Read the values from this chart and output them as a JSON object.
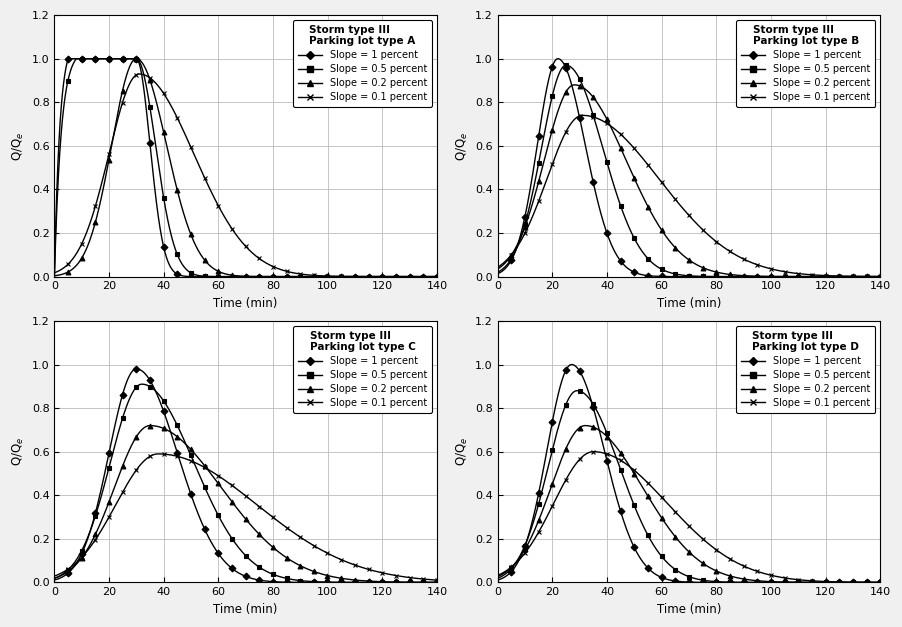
{
  "subplot_titles": [
    [
      "Storm type III",
      "Parking lot type A"
    ],
    [
      "Storm type III",
      "Parking lot type B"
    ],
    [
      "Storm type III",
      "Parking lot type C"
    ],
    [
      "Storm type III",
      "Parking lot type D"
    ]
  ],
  "slope_labels": [
    "Slope = 1 percent",
    "Slope = 0.5 percent",
    "Slope = 0.2 percent",
    "Slope = 0.1 percent"
  ],
  "markers": [
    "D",
    "s",
    "^",
    "x"
  ],
  "xlabel": "Time (min)",
  "ylabel": "Q/Q$_e$",
  "xlim": [
    0,
    140
  ],
  "ylim": [
    0,
    1.2
  ],
  "xticks": [
    0,
    20,
    40,
    60,
    80,
    100,
    120,
    140
  ],
  "yticks": [
    0,
    0.2,
    0.4,
    0.6,
    0.8,
    1.0,
    1.2
  ],
  "curves_A": {
    "peaks": [
      1.0,
      1.0,
      1.0,
      0.93
    ],
    "flat_starts": [
      5,
      8,
      null,
      null
    ],
    "flat_ends": [
      30,
      30,
      null,
      null
    ],
    "peak_times": [
      null,
      null,
      30,
      31
    ],
    "rise_s": [
      2.0,
      2.5,
      9,
      11
    ],
    "fall_s": [
      5.0,
      7.0,
      11,
      20
    ]
  },
  "curves_B": {
    "peaks": [
      1.0,
      0.97,
      0.88,
      0.74
    ],
    "peak_times": [
      22,
      25,
      28,
      31
    ],
    "rise_s": [
      7.5,
      9.0,
      11.0,
      13.0
    ],
    "fall_s": [
      10.0,
      13.5,
      19.0,
      28.0
    ]
  },
  "curves_C": {
    "peaks": [
      0.98,
      0.91,
      0.72,
      0.59
    ],
    "peak_times": [
      30,
      32,
      35,
      38
    ],
    "rise_s": [
      10.0,
      11.5,
      13.0,
      15.5
    ],
    "fall_s": [
      15.0,
      19.0,
      26.0,
      36.0
    ]
  },
  "curves_D": {
    "peaks": [
      1.0,
      0.88,
      0.72,
      0.6
    ],
    "peak_times": [
      27,
      29,
      32,
      35
    ],
    "rise_s": [
      9.0,
      10.5,
      12.5,
      14.5
    ],
    "fall_s": [
      12.0,
      15.5,
      21.0,
      27.0
    ]
  }
}
